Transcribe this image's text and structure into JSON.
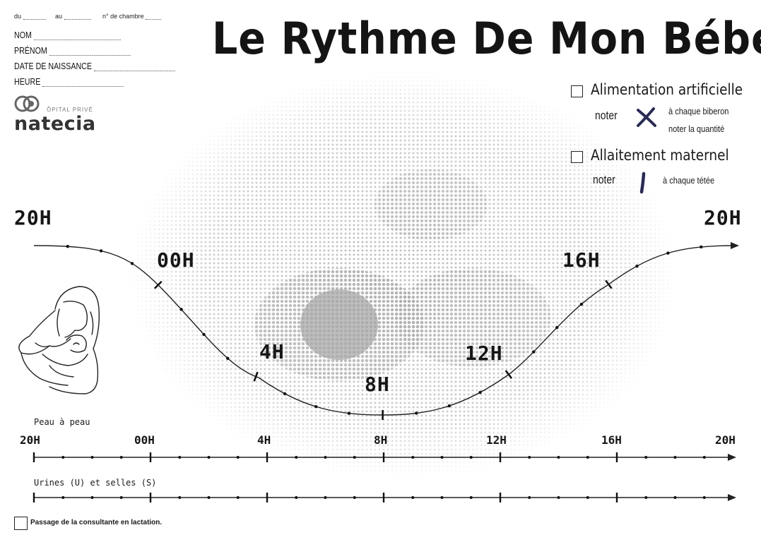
{
  "header_fields": {
    "du": "du",
    "au": "au",
    "chambre": "n° de chambre",
    "nom": "NOM",
    "prenom": "PRÉNOM",
    "date_naissance": "DATE DE NAISSANCE",
    "heure": "HEURE"
  },
  "logo": {
    "small": "ÔPITAL PRIVÉ",
    "name": "natecia"
  },
  "title": "Le Rythme De Mon Bébé",
  "legend": {
    "artificial": {
      "label": "Alimentation artificielle",
      "noter": "noter",
      "symbol": "cross-mark",
      "line1": "à chaque biberon",
      "line2": "noter la quantité"
    },
    "breast": {
      "label": "Allaitement maternel",
      "noter": "noter",
      "symbol": "stroke-mark",
      "line1": "à chaque tétée"
    },
    "mark_color": "#2a2a55"
  },
  "curve_hours": {
    "left": "20H",
    "right": "20H",
    "h00": "00H",
    "h4": "4H",
    "h8": "8H",
    "h12": "12H",
    "h16": "16H"
  },
  "timeline1": {
    "label": "Peau à peau",
    "ticks": [
      "20H",
      "00H",
      "4H",
      "8H",
      "12H",
      "16H",
      "20H"
    ]
  },
  "timeline2": {
    "label": "Urines (U) et selles (S)"
  },
  "footer": {
    "checkbox_text": "Passage de la consultante en lactation."
  }
}
